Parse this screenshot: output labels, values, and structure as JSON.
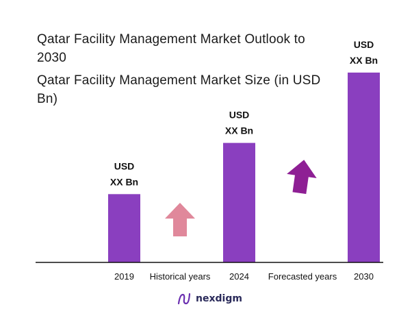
{
  "header": {
    "title": "Qatar Facility Management Market Outlook to 2030",
    "subtitle": "Qatar Facility Management Market Size (in USD Bn)"
  },
  "chart_data": {
    "type": "bar",
    "categories": [
      "2019",
      "2024",
      "2030"
    ],
    "values": [
      1.0,
      1.75,
      2.78
    ],
    "value_labels": [
      [
        "USD",
        "XX Bn"
      ],
      [
        "USD",
        "XX Bn"
      ],
      [
        "USD",
        "XX Bn"
      ]
    ],
    "bar_color": "#8a3fbf",
    "ylim": [
      0,
      3
    ],
    "grid": false,
    "annotations": [
      {
        "label": "Historical years",
        "arrow_color": "#e0889b"
      },
      {
        "label": "Forecasted years",
        "arrow_color": "#8e1f94"
      }
    ]
  },
  "brand": {
    "name": "nexdigm",
    "icon": "nexdigm-logo-icon",
    "color": "#6a2fb0"
  }
}
